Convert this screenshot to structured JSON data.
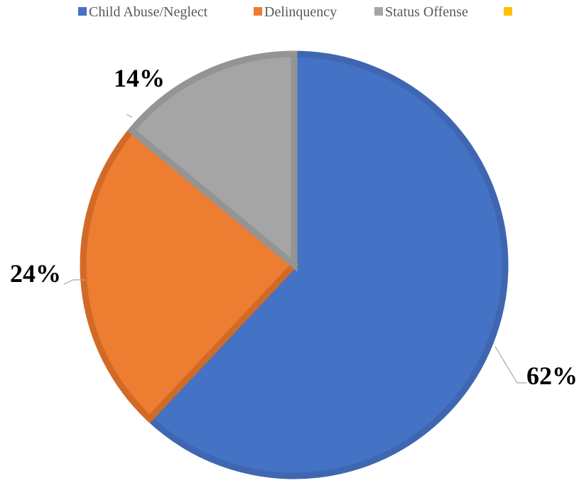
{
  "chart_data": {
    "type": "pie",
    "title": "",
    "legend_position": "top",
    "start_angle_deg": 0,
    "direction": "clockwise",
    "series": [
      {
        "slices": [
          {
            "label": "Child Abuse/Neglect",
            "value": 62,
            "data_label": "62%",
            "color": "#4472C4",
            "border_color": "#3F66B0"
          },
          {
            "label": "Delinquency",
            "value": 24,
            "data_label": "24%",
            "color": "#ED7D31",
            "border_color": "#D26A27"
          },
          {
            "label": "Status Offense",
            "value": 14,
            "data_label": "14%",
            "color": "#A5A5A5",
            "border_color": "#949494"
          }
        ]
      }
    ],
    "legend": [
      {
        "label": "Child Abuse/Neglect",
        "color": "#4472C4"
      },
      {
        "label": "Delinquency",
        "color": "#ED7D31"
      },
      {
        "label": "Status Offense",
        "color": "#A5A5A5"
      },
      {
        "label": "",
        "color": "#FFC000"
      }
    ]
  }
}
